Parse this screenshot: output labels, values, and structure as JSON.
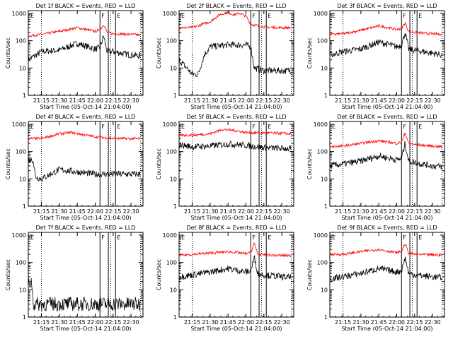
{
  "figure": {
    "xlabel": "Start Time (05-Oct-14 21:04:00)",
    "ylabel": "Counts/sec",
    "x_ticks": [
      "21:15",
      "21:30",
      "21:45",
      "22:00",
      "22:15",
      "22:30"
    ],
    "y_ticks": [
      "1",
      "10",
      "100",
      "1000"
    ],
    "colors": {
      "events": "#000000",
      "lld": "#ff0000",
      "axes": "#000000"
    }
  },
  "chart_data": [
    {
      "type": "line",
      "title": "Det 1f BLACK = Events, RED = LLD",
      "flags": [
        "E",
        "F",
        "E"
      ],
      "xlim": [
        "21:04",
        "22:40"
      ],
      "ylim": [
        1,
        1000
      ],
      "yscale": "log",
      "series": [
        {
          "name": "Events",
          "color": "#000000",
          "x": [
            "21:04",
            "21:15",
            "21:30",
            "21:45",
            "22:00",
            "22:04",
            "22:07",
            "22:10",
            "22:15",
            "22:30",
            "22:38"
          ],
          "y": [
            20,
            40,
            45,
            80,
            50,
            55,
            150,
            40,
            40,
            30,
            28
          ]
        },
        {
          "name": "LLD",
          "color": "#ff0000",
          "x": [
            "21:04",
            "21:15",
            "21:30",
            "21:45",
            "22:00",
            "22:04",
            "22:07",
            "22:10",
            "22:15",
            "22:30",
            "22:38"
          ],
          "y": [
            150,
            170,
            220,
            300,
            220,
            250,
            400,
            200,
            180,
            170,
            160
          ]
        }
      ]
    },
    {
      "type": "line",
      "title": "Det 2f BLACK = Events, RED = LLD",
      "flags": [
        "E",
        "F",
        "E"
      ],
      "xlim": [
        "21:04",
        "22:40"
      ],
      "ylim": [
        1,
        1000
      ],
      "yscale": "log",
      "series": [
        {
          "name": "Events",
          "color": "#000000",
          "x": [
            "21:04",
            "21:15",
            "21:20",
            "21:25",
            "21:30",
            "21:45",
            "22:00",
            "22:04",
            "22:07",
            "22:15",
            "22:30",
            "22:38"
          ],
          "y": [
            20,
            6,
            6,
            30,
            60,
            70,
            70,
            60,
            10,
            8,
            8,
            8
          ]
        },
        {
          "name": "LLD",
          "color": "#ff0000",
          "x": [
            "21:04",
            "21:15",
            "21:30",
            "21:38",
            "21:45",
            "21:50",
            "21:55",
            "22:00",
            "22:04",
            "22:15",
            "22:30",
            "22:38"
          ],
          "y": [
            300,
            300,
            500,
            900,
            1100,
            900,
            1000,
            800,
            400,
            320,
            300,
            300
          ]
        }
      ]
    },
    {
      "type": "line",
      "title": "Det 3f BLACK = Events, RED = LLD",
      "flags": [
        "E",
        "F",
        "E"
      ],
      "xlim": [
        "21:04",
        "22:40"
      ],
      "ylim": [
        1,
        1000
      ],
      "yscale": "log",
      "series": [
        {
          "name": "Events",
          "color": "#000000",
          "x": [
            "21:04",
            "21:15",
            "21:30",
            "21:45",
            "22:00",
            "22:04",
            "22:07",
            "22:10",
            "22:15",
            "22:30",
            "22:38"
          ],
          "y": [
            30,
            40,
            50,
            90,
            60,
            70,
            200,
            50,
            45,
            35,
            30
          ]
        },
        {
          "name": "LLD",
          "color": "#ff0000",
          "x": [
            "21:04",
            "21:15",
            "21:30",
            "21:45",
            "22:00",
            "22:04",
            "22:07",
            "22:10",
            "22:15",
            "22:30",
            "22:38"
          ],
          "y": [
            170,
            180,
            240,
            350,
            260,
            280,
            450,
            220,
            200,
            180,
            170
          ]
        }
      ]
    },
    {
      "type": "line",
      "title": "Det 4f BLACK = Events, RED = LLD",
      "flags": [
        "E",
        "F",
        "E"
      ],
      "xlim": [
        "21:04",
        "22:40"
      ],
      "ylim": [
        1,
        1000
      ],
      "yscale": "log",
      "series": [
        {
          "name": "Events",
          "color": "#000000",
          "x": [
            "21:04",
            "21:08",
            "21:10",
            "21:15",
            "21:30",
            "21:45",
            "22:00",
            "22:15",
            "22:30",
            "22:38"
          ],
          "y": [
            50,
            50,
            12,
            10,
            22,
            18,
            15,
            15,
            15,
            15
          ]
        },
        {
          "name": "LLD",
          "color": "#ff0000",
          "x": [
            "21:04",
            "21:15",
            "21:30",
            "21:40",
            "22:00",
            "22:15",
            "22:30",
            "22:38"
          ],
          "y": [
            300,
            300,
            450,
            500,
            350,
            300,
            300,
            300
          ]
        }
      ]
    },
    {
      "type": "line",
      "title": "Det 5f BLACK = Events, RED = LLD",
      "flags": [
        "E",
        "F",
        "E"
      ],
      "xlim": [
        "21:04",
        "22:40"
      ],
      "ylim": [
        1,
        1000
      ],
      "yscale": "log",
      "series": [
        {
          "name": "Events",
          "color": "#000000",
          "x": [
            "21:04",
            "21:15",
            "21:30",
            "21:45",
            "22:00",
            "22:15",
            "22:30",
            "22:38"
          ],
          "y": [
            180,
            150,
            160,
            190,
            170,
            140,
            130,
            130
          ]
        },
        {
          "name": "LLD",
          "color": "#ff0000",
          "x": [
            "21:04",
            "21:15",
            "21:30",
            "21:40",
            "21:50",
            "22:00",
            "22:15",
            "22:30",
            "22:38"
          ],
          "y": [
            400,
            400,
            450,
            650,
            600,
            500,
            480,
            470,
            450
          ]
        }
      ]
    },
    {
      "type": "line",
      "title": "Det 6f BLACK = Events, RED = LLD",
      "flags": [
        "E",
        "F",
        "E"
      ],
      "xlim": [
        "21:04",
        "22:40"
      ],
      "ylim": [
        1,
        1000
      ],
      "yscale": "log",
      "series": [
        {
          "name": "Events",
          "color": "#000000",
          "x": [
            "21:04",
            "21:15",
            "21:30",
            "21:45",
            "22:00",
            "22:04",
            "22:07",
            "22:10",
            "22:15",
            "22:30",
            "22:38"
          ],
          "y": [
            30,
            35,
            45,
            70,
            50,
            55,
            200,
            45,
            40,
            30,
            28
          ]
        },
        {
          "name": "LLD",
          "color": "#ff0000",
          "x": [
            "21:04",
            "21:15",
            "21:30",
            "21:45",
            "22:00",
            "22:04",
            "22:07",
            "22:10",
            "22:15",
            "22:30",
            "22:38"
          ],
          "y": [
            150,
            160,
            200,
            250,
            200,
            220,
            500,
            200,
            180,
            160,
            150
          ]
        }
      ]
    },
    {
      "type": "line",
      "title": "Det 7f BLACK = Events, RED = LLD",
      "flags": [
        "E",
        "F",
        "E"
      ],
      "xlim": [
        "21:04",
        "22:40"
      ],
      "ylim": [
        1,
        1000
      ],
      "yscale": "log",
      "series": [
        {
          "name": "Events",
          "color": "#000000",
          "x": [
            "21:04",
            "21:07",
            "21:08",
            "21:15",
            "21:30",
            "21:45",
            "22:00",
            "22:15",
            "22:30",
            "22:38"
          ],
          "y": [
            15,
            20,
            3,
            3,
            3,
            3,
            3,
            3,
            3,
            3
          ]
        }
      ]
    },
    {
      "type": "line",
      "title": "Det 8f BLACK = Events, RED = LLD",
      "flags": [
        "E",
        "F",
        "E"
      ],
      "xlim": [
        "21:04",
        "22:40"
      ],
      "ylim": [
        1,
        1000
      ],
      "yscale": "log",
      "series": [
        {
          "name": "Events",
          "color": "#000000",
          "x": [
            "21:04",
            "21:15",
            "21:30",
            "21:45",
            "22:00",
            "22:04",
            "22:07",
            "22:10",
            "22:15",
            "22:30",
            "22:38"
          ],
          "y": [
            30,
            35,
            45,
            60,
            45,
            50,
            150,
            40,
            35,
            30,
            28
          ]
        },
        {
          "name": "LLD",
          "color": "#ff0000",
          "x": [
            "21:04",
            "21:15",
            "21:30",
            "21:45",
            "22:00",
            "22:04",
            "22:07",
            "22:10",
            "22:15",
            "22:30",
            "22:38"
          ],
          "y": [
            180,
            200,
            220,
            250,
            210,
            230,
            500,
            200,
            190,
            180,
            180
          ]
        }
      ]
    },
    {
      "type": "line",
      "title": "Det 9f BLACK = Events, RED = LLD",
      "flags": [
        "E",
        "F",
        "E"
      ],
      "xlim": [
        "21:04",
        "22:40"
      ],
      "ylim": [
        1,
        1000
      ],
      "yscale": "log",
      "series": [
        {
          "name": "Events",
          "color": "#000000",
          "x": [
            "21:04",
            "21:15",
            "21:30",
            "21:45",
            "22:00",
            "22:04",
            "22:07",
            "22:10",
            "22:15",
            "22:30",
            "22:38"
          ],
          "y": [
            25,
            30,
            40,
            60,
            45,
            50,
            150,
            40,
            35,
            30,
            28
          ]
        },
        {
          "name": "LLD",
          "color": "#ff0000",
          "x": [
            "21:04",
            "21:15",
            "21:30",
            "21:45",
            "22:00",
            "22:04",
            "22:07",
            "22:10",
            "22:15",
            "22:30",
            "22:38"
          ],
          "y": [
            200,
            200,
            250,
            300,
            230,
            250,
            500,
            220,
            200,
            190,
            190
          ]
        }
      ]
    }
  ]
}
